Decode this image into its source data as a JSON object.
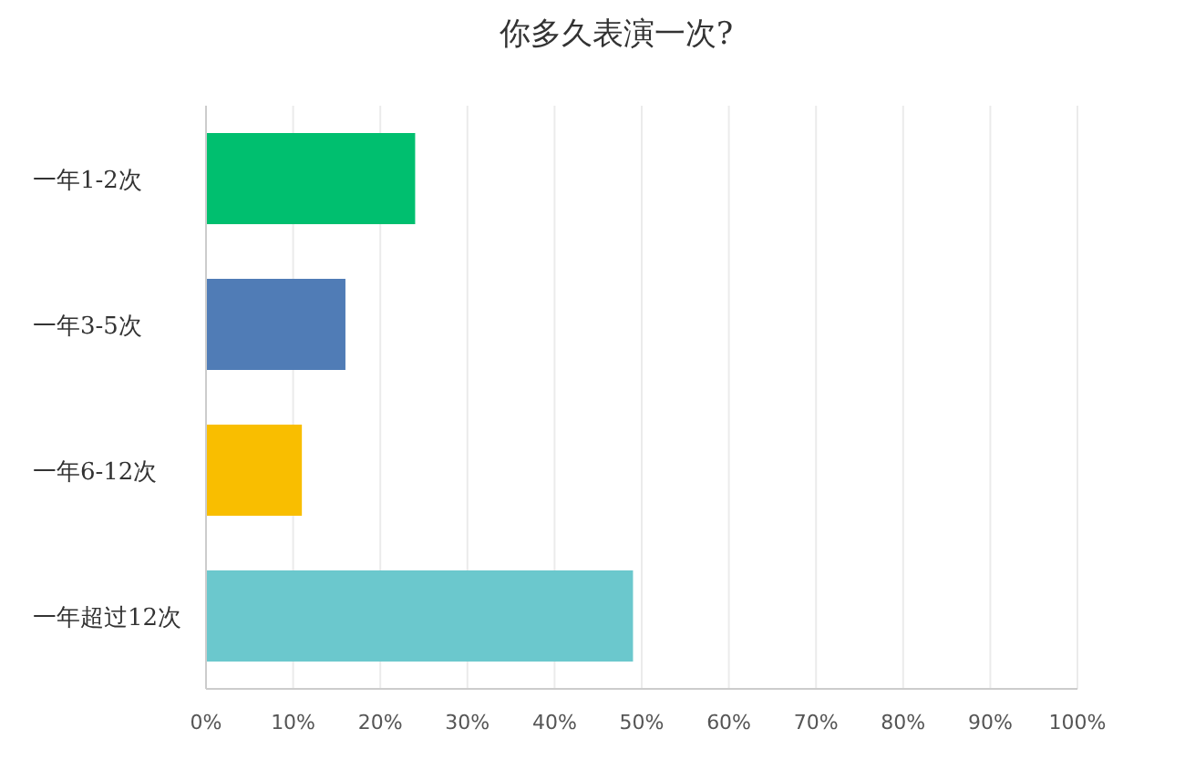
{
  "chart_data": {
    "type": "bar",
    "orientation": "horizontal",
    "title": "你多久表演一次?",
    "categories": [
      "一年1-2次",
      "一年3-5次",
      "一年6-12次",
      "一年超过12次"
    ],
    "values": [
      24,
      16,
      11,
      49
    ],
    "colors": [
      "#00bf6f",
      "#507cb6",
      "#f9be00",
      "#6bc8cd"
    ],
    "xlim": [
      0,
      100
    ],
    "xticks": [
      {
        "value": 0,
        "label": "0%"
      },
      {
        "value": 10,
        "label": "10%"
      },
      {
        "value": 20,
        "label": "20%"
      },
      {
        "value": 30,
        "label": "30%"
      },
      {
        "value": 40,
        "label": "40%"
      },
      {
        "value": 50,
        "label": "50%"
      },
      {
        "value": 60,
        "label": "60%"
      },
      {
        "value": 70,
        "label": "70%"
      },
      {
        "value": 80,
        "label": "80%"
      },
      {
        "value": 90,
        "label": "90%"
      },
      {
        "value": 100,
        "label": "100%"
      }
    ],
    "grid": "x"
  }
}
